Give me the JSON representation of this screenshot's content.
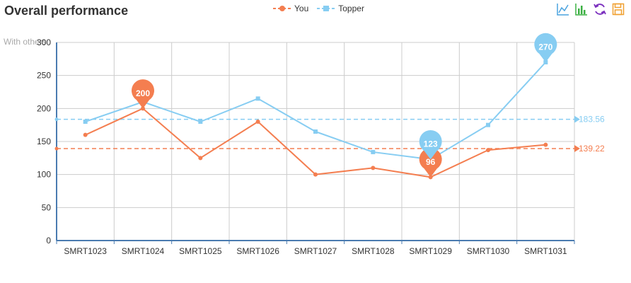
{
  "title": "Overall performance",
  "subtitle": "With others",
  "colors": {
    "you": "#f47e50",
    "topper": "#87cdf2",
    "axis": "#4a7bb0",
    "grid": "#cccccc"
  },
  "toolbox": [
    "line-chart-icon",
    "bar-chart-icon",
    "restore-icon",
    "save-image-icon"
  ],
  "chart_data": {
    "type": "line",
    "title": "Overall performance",
    "subtitle": "With others",
    "categories": [
      "SMRT1023",
      "SMRT1024",
      "SMRT1025",
      "SMRT1026",
      "SMRT1027",
      "SMRT1028",
      "SMRT1029",
      "SMRT1030",
      "SMRT1031"
    ],
    "ylim": [
      0,
      300
    ],
    "yticks": [
      0,
      50,
      100,
      150,
      200,
      250,
      300
    ],
    "grid": true,
    "legend_position": "top-center",
    "series": [
      {
        "name": "You",
        "color": "#f47e50",
        "symbol": "circle",
        "values": [
          160,
          200,
          125,
          180,
          100,
          110,
          96,
          137,
          145
        ],
        "average": 139.22,
        "average_label": "139.22",
        "max_label": "200",
        "min_label": "96"
      },
      {
        "name": "Topper",
        "color": "#87cdf2",
        "symbol": "square",
        "values": [
          180,
          210,
          180,
          215,
          165,
          134,
          123,
          175,
          270
        ],
        "average": 183.56,
        "average_label": "183.56",
        "max_label": "270",
        "min_label": "123"
      }
    ]
  }
}
